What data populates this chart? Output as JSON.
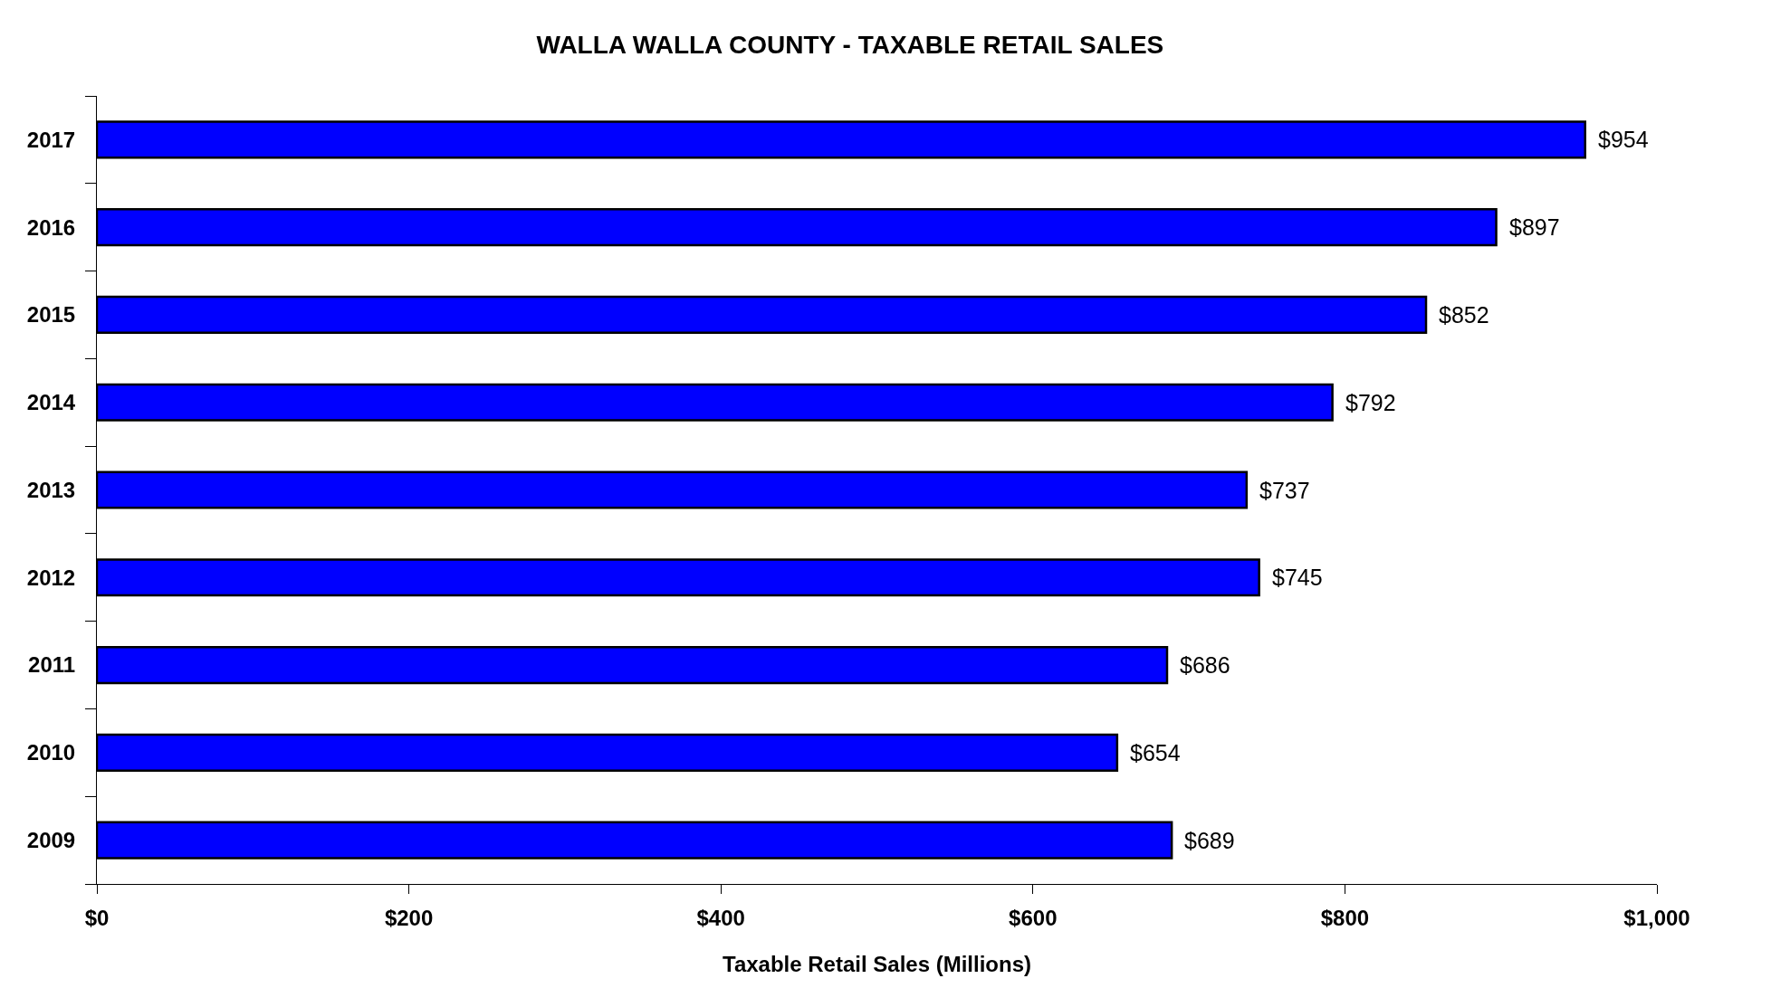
{
  "chart_data": {
    "type": "bar",
    "orientation": "horizontal",
    "title": "WALLA WALLA COUNTY - TAXABLE RETAIL SALES",
    "xlabel": "Taxable Retail Sales (Millions)",
    "categories": [
      "2017",
      "2016",
      "2015",
      "2014",
      "2013",
      "2012",
      "2011",
      "2010",
      "2009"
    ],
    "values": [
      954,
      897,
      852,
      792,
      737,
      745,
      686,
      654,
      689
    ],
    "value_labels": [
      "$954",
      "$897",
      "$852",
      "$792",
      "$737",
      "$745",
      "$686",
      "$654",
      "$689"
    ],
    "color": "#0000ff",
    "xlim": [
      0,
      1000
    ],
    "xticks": [
      {
        "value": 0,
        "label": "$0"
      },
      {
        "value": 200,
        "label": "$200"
      },
      {
        "value": 400,
        "label": "$400"
      },
      {
        "value": 600,
        "label": "$600"
      },
      {
        "value": 800,
        "label": "$800"
      },
      {
        "value": 1000,
        "label": "$1,000"
      }
    ],
    "grid": false
  }
}
